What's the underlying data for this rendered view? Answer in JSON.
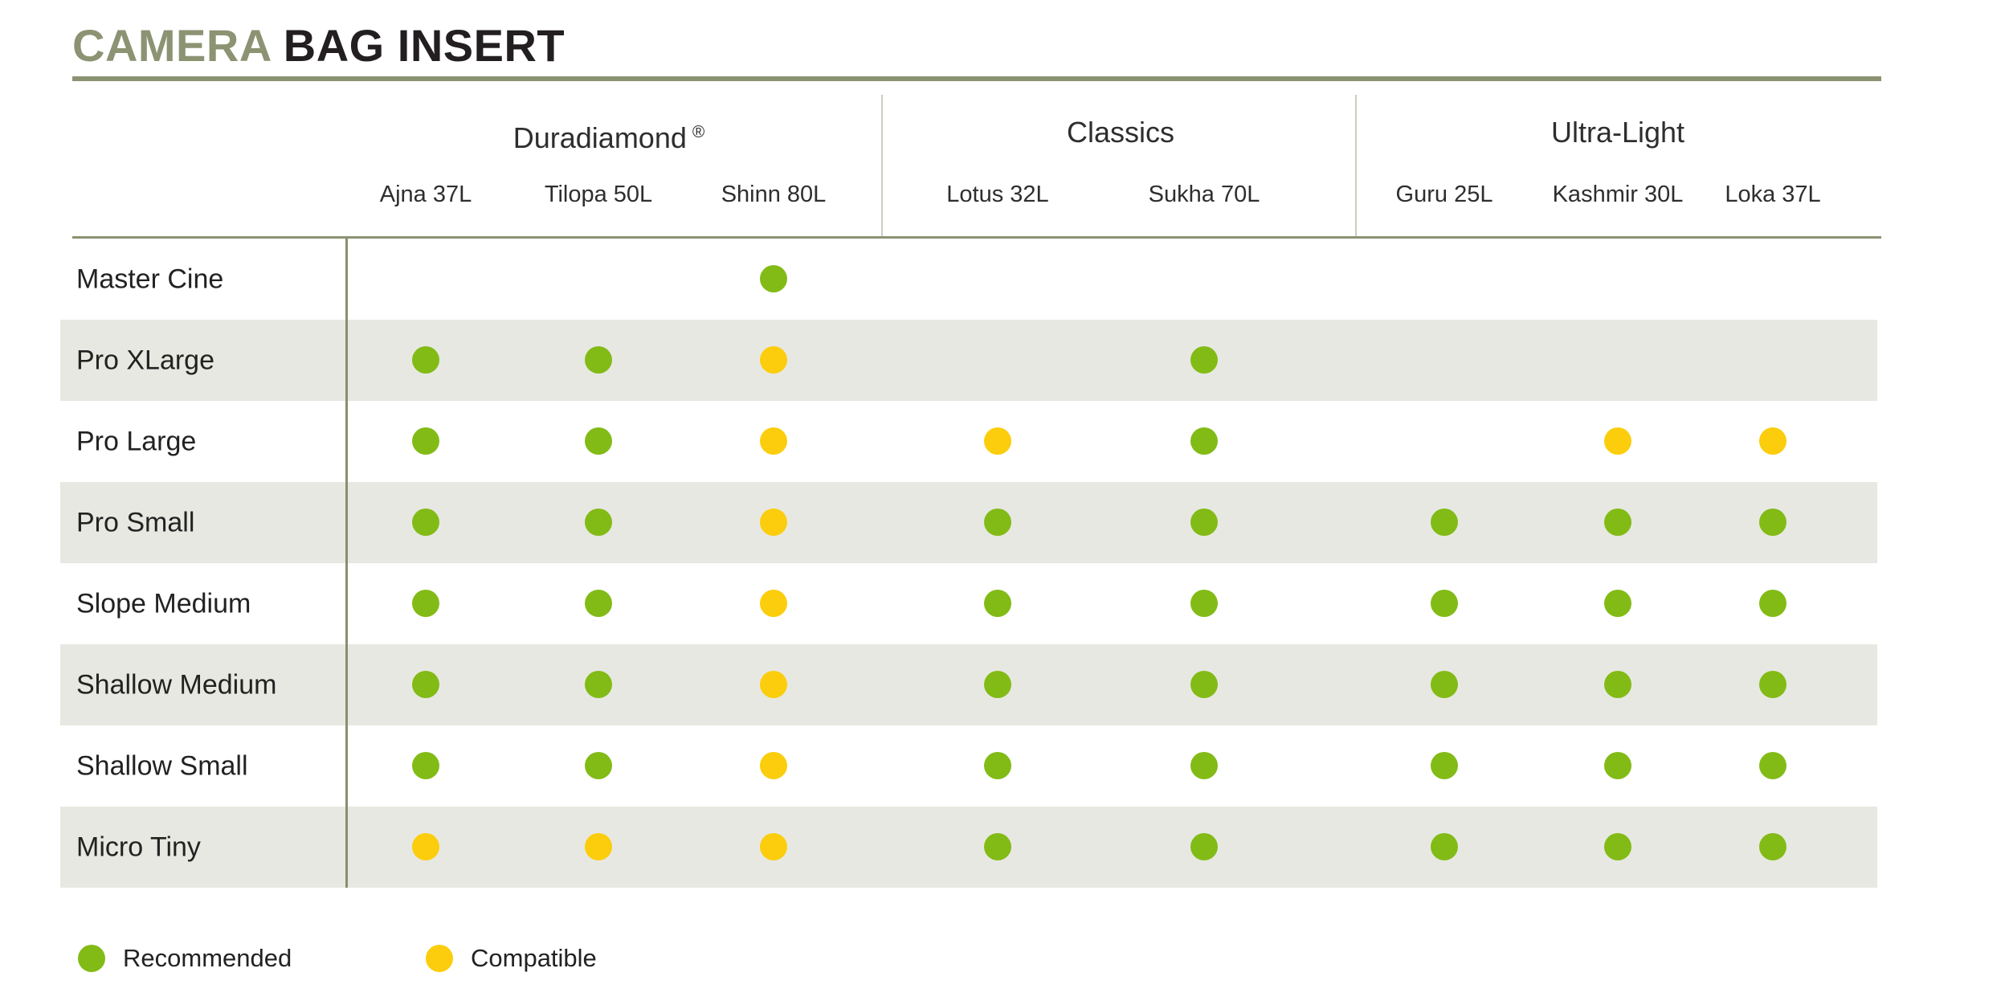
{
  "title": {
    "accent": "CAMERA",
    "rest": "BAG INSERT"
  },
  "colors": {
    "recommended": "#82bb16",
    "compatible": "#fbcd0c",
    "accent_olive": "#8b9373",
    "rule_olive": "#86906f",
    "stripe": "#e8e8e2",
    "divider_light": "#ccccc4",
    "text_dark": "#231f20"
  },
  "legend_items": [
    {
      "label": "Recommended",
      "status": "recommended"
    },
    {
      "label": "Compatible",
      "status": "compatible"
    }
  ],
  "chart_data": {
    "type": "table",
    "title": "CAMERA BAG INSERT",
    "legend": {
      "recommended": "Recommended",
      "compatible": "Compatible"
    },
    "column_groups": [
      {
        "label": "Duradiamond",
        "suffix": "®",
        "columns": [
          "Ajna 37L",
          "Tilopa 50L",
          "Shinn 80L"
        ]
      },
      {
        "label": "Classics",
        "columns": [
          "Lotus 32L",
          "Sukha 70L"
        ]
      },
      {
        "label": "Ultra-Light",
        "columns": [
          "Guru 25L",
          "Kashmir 30L",
          "Loka 37L"
        ]
      }
    ],
    "columns": [
      "Ajna 37L",
      "Tilopa 50L",
      "Shinn 80L",
      "Lotus 32L",
      "Sukha 70L",
      "Guru 25L",
      "Kashmir 30L",
      "Loka 37L"
    ],
    "rows": [
      {
        "label": "Master Cine",
        "cells": [
          null,
          null,
          "recommended",
          null,
          null,
          null,
          null,
          null
        ]
      },
      {
        "label": "Pro XLarge",
        "cells": [
          "recommended",
          "recommended",
          "compatible",
          null,
          "recommended",
          null,
          null,
          null
        ]
      },
      {
        "label": "Pro Large",
        "cells": [
          "recommended",
          "recommended",
          "compatible",
          "compatible",
          "recommended",
          null,
          "compatible",
          "compatible"
        ]
      },
      {
        "label": "Pro Small",
        "cells": [
          "recommended",
          "recommended",
          "compatible",
          "recommended",
          "recommended",
          "recommended",
          "recommended",
          "recommended"
        ]
      },
      {
        "label": "Slope Medium",
        "cells": [
          "recommended",
          "recommended",
          "compatible",
          "recommended",
          "recommended",
          "recommended",
          "recommended",
          "recommended"
        ]
      },
      {
        "label": "Shallow Medium",
        "cells": [
          "recommended",
          "recommended",
          "compatible",
          "recommended",
          "recommended",
          "recommended",
          "recommended",
          "recommended"
        ]
      },
      {
        "label": "Shallow Small",
        "cells": [
          "recommended",
          "recommended",
          "compatible",
          "recommended",
          "recommended",
          "recommended",
          "recommended",
          "recommended"
        ]
      },
      {
        "label": "Micro Tiny",
        "cells": [
          "compatible",
          "compatible",
          "compatible",
          "recommended",
          "recommended",
          "recommended",
          "recommended",
          "recommended"
        ]
      }
    ]
  }
}
